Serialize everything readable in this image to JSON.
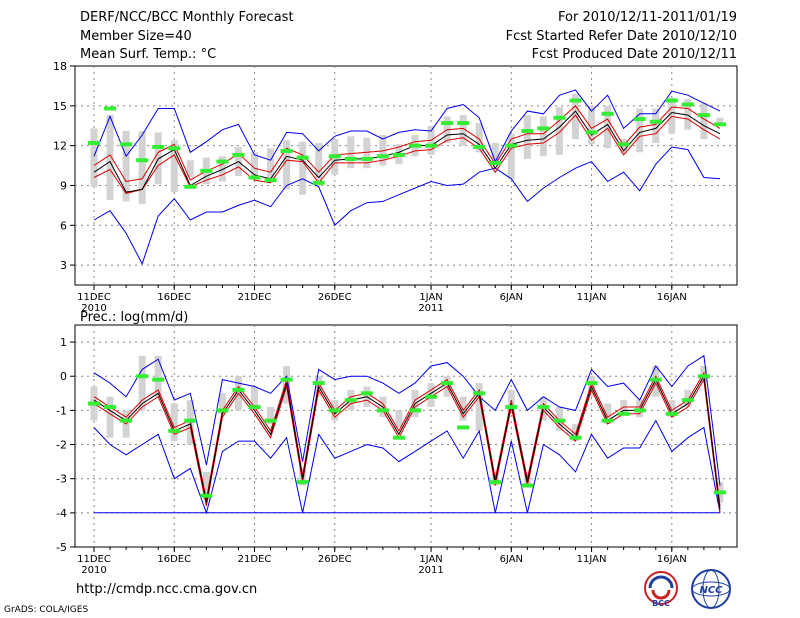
{
  "header": {
    "title": "DERF/NCC/BCC Monthly Forecast",
    "member_size": "Member Size=40",
    "variable1": "Mean Surf. Temp.: °C",
    "for_range": "For 2010/12/11-2011/01/19",
    "refer_date": "Fcst Started Refer Date 2010/12/10",
    "produced_date": "Fcst Produced Date 2010/12/11"
  },
  "footer": {
    "url": "http://cmdp.ncc.cma.gov.cn",
    "grads": "GrADS: COLA/IGES",
    "logo_bcc": "BCC",
    "logo_ncc": "NCC"
  },
  "colors": {
    "box": "#d3d3d3",
    "median": "#33ee33",
    "envelope": "#0000ee",
    "spread": "#dd0000",
    "mean": "#000000",
    "grid": "#888888"
  },
  "chart_data": [
    {
      "type": "line",
      "title": "Mean Surf. Temp.: °C",
      "x_days": 40,
      "xticks": [
        "11DEC\n2010",
        "16DEC",
        "21DEC",
        "26DEC",
        "1JAN\n2011",
        "6JAN",
        "11JAN",
        "16JAN"
      ],
      "xtick_days": [
        0,
        5,
        10,
        15,
        21,
        26,
        31,
        36
      ],
      "ylim": [
        1.5,
        18
      ],
      "yticks": [
        3,
        6,
        9,
        12,
        15,
        18
      ],
      "series": [
        {
          "name": "max",
          "values": [
            6.4,
            7.1,
            5.4,
            3.1,
            6.7,
            8.0,
            6.4,
            7.0,
            7.0,
            7.5,
            7.9,
            7.4,
            9.0,
            9.5,
            8.9,
            6.0,
            7.1,
            7.7,
            7.8,
            8.3,
            8.8,
            9.3,
            9.0,
            9.1,
            10.0,
            10.3,
            9.5,
            7.8,
            8.8,
            9.6,
            10.3,
            10.8,
            9.3,
            10.0,
            8.6,
            10.6,
            11.9,
            11.7,
            9.6,
            9.5
          ]
        },
        {
          "name": "box_low",
          "values": [
            8.9,
            7.9,
            7.8,
            7.6,
            9.1,
            8.5,
            9.6,
            9.1,
            9.3,
            9.7,
            9.7,
            9.2,
            8.7,
            8.3,
            9.0,
            9.8,
            10.3,
            10.3,
            10.5,
            10.6,
            11.2,
            11.3,
            12.2,
            12.0,
            11.5,
            10.6,
            9.5,
            11.0,
            11.2,
            11.3,
            12.5,
            12.1,
            11.8,
            11.4,
            11.5,
            12.2,
            12.9,
            13.2,
            12.5,
            13.5
          ]
        },
        {
          "name": "mean_low",
          "values": [
            9.6,
            10.2,
            8.4,
            8.7,
            10.5,
            11.3,
            8.9,
            9.4,
            9.8,
            10.4,
            9.4,
            9.2,
            10.9,
            10.8,
            9.2,
            10.7,
            10.7,
            10.7,
            10.9,
            11.2,
            11.6,
            11.7,
            12.4,
            12.6,
            11.8,
            10.0,
            11.8,
            12.1,
            12.2,
            13.0,
            14.3,
            12.4,
            13.3,
            11.3,
            12.7,
            12.9,
            14.2,
            14.0,
            13.2,
            12.5
          ]
        },
        {
          "name": "ensemble_mean",
          "values": [
            10.0,
            10.8,
            8.5,
            8.7,
            11.0,
            11.7,
            9.0,
            9.7,
            10.2,
            10.8,
            9.8,
            9.5,
            11.2,
            10.9,
            9.6,
            10.9,
            11.0,
            11.0,
            11.2,
            11.5,
            12.0,
            12.0,
            12.8,
            12.9,
            12.1,
            10.3,
            12.1,
            12.4,
            12.5,
            13.4,
            14.6,
            12.8,
            13.6,
            11.6,
            13.0,
            13.3,
            14.5,
            14.3,
            13.5,
            12.9
          ]
        },
        {
          "name": "mean_high",
          "values": [
            10.5,
            11.3,
            9.3,
            9.5,
            11.5,
            12.1,
            9.4,
            10.1,
            10.6,
            11.4,
            10.3,
            10.0,
            11.8,
            11.3,
            10.0,
            11.3,
            11.4,
            11.5,
            11.6,
            11.9,
            12.3,
            12.4,
            13.2,
            13.3,
            12.5,
            10.6,
            12.5,
            12.9,
            12.9,
            13.9,
            15.0,
            13.3,
            14.0,
            12.0,
            13.4,
            13.6,
            14.9,
            14.8,
            14.0,
            13.3
          ]
        },
        {
          "name": "box_high",
          "values": [
            13.3,
            14.3,
            13.1,
            13.1,
            13.0,
            12.4,
            10.9,
            11.1,
            11.2,
            11.9,
            11.5,
            11.8,
            12.4,
            12.3,
            12.2,
            12.5,
            12.7,
            12.6,
            12.8,
            12.1,
            12.8,
            13.5,
            14.2,
            14.3,
            13.7,
            12.2,
            12.9,
            14.3,
            14.2,
            14.9,
            15.9,
            15.0,
            15.0,
            12.5,
            14.8,
            14.8,
            15.6,
            15.5,
            15.2,
            14.1
          ]
        },
        {
          "name": "min",
          "values": [
            11.2,
            14.2,
            11.2,
            12.8,
            14.8,
            14.8,
            11.5,
            12.3,
            13.2,
            13.6,
            11.3,
            10.9,
            13.0,
            12.9,
            11.6,
            12.7,
            13.1,
            13.1,
            12.5,
            13.0,
            13.2,
            13.1,
            14.8,
            15.1,
            14.1,
            10.8,
            13.1,
            14.6,
            14.4,
            15.8,
            16.2,
            14.6,
            15.8,
            13.3,
            14.4,
            14.4,
            16.1,
            15.8,
            15.2,
            14.6
          ]
        },
        {
          "name": "median",
          "values": [
            12.2,
            14.8,
            12.1,
            10.9,
            11.9,
            11.8,
            8.9,
            10.1,
            10.8,
            11.3,
            9.6,
            9.4,
            11.6,
            11.1,
            9.2,
            11.2,
            11.0,
            11.0,
            11.2,
            11.3,
            12.0,
            12.0,
            13.7,
            13.7,
            11.9,
            10.7,
            12.0,
            13.1,
            13.3,
            14.1,
            15.4,
            13.0,
            14.4,
            12.1,
            14.0,
            13.8,
            15.4,
            15.1,
            14.3,
            13.6
          ]
        }
      ]
    },
    {
      "type": "line",
      "title": "Prec.: log(mm/d)",
      "x_days": 40,
      "xticks": [
        "11DEC\n2010",
        "16DEC",
        "21DEC",
        "26DEC",
        "1JAN\n2011",
        "6JAN",
        "11JAN",
        "16JAN"
      ],
      "xtick_days": [
        0,
        5,
        10,
        15,
        21,
        26,
        31,
        36
      ],
      "ylim": [
        -5,
        1.5
      ],
      "yticks": [
        -5,
        -4,
        -3,
        -2,
        -1,
        0,
        1
      ],
      "series": [
        {
          "name": "max",
          "values": [
            0.1,
            -0.2,
            -0.6,
            0.2,
            0.5,
            -0.7,
            -0.5,
            -2.6,
            -0.1,
            -0.2,
            -0.3,
            -0.5,
            0.0,
            -2.5,
            0.2,
            -0.1,
            0.0,
            0.0,
            -0.2,
            -0.5,
            -0.2,
            0.3,
            0.4,
            0.0,
            -0.6,
            -1.0,
            -0.1,
            -1.0,
            -0.6,
            -0.9,
            -1.0,
            0.2,
            -0.3,
            -0.2,
            -0.7,
            0.3,
            -0.3,
            0.3,
            0.6,
            -3.2
          ]
        },
        {
          "name": "box_low",
          "values": [
            -1.3,
            -1.8,
            -1.8,
            -1.0,
            -0.6,
            -1.9,
            -2.0,
            -3.6,
            -1.1,
            -1.0,
            -1.0,
            -1.4,
            -0.8,
            -3.2,
            -0.6,
            -1.3,
            -1.0,
            -0.9,
            -1.2,
            -1.5,
            -1.2,
            -0.9,
            -0.6,
            -1.3,
            -1.6,
            -3.2,
            -1.1,
            -3.2,
            -1.3,
            -1.6,
            -1.9,
            -0.6,
            -1.4,
            -1.1,
            -1.2,
            -0.6,
            -1.2,
            -0.9,
            -0.2,
            -3.7
          ]
        },
        {
          "name": "mean_low",
          "values": [
            -0.8,
            -1.1,
            -1.4,
            -0.9,
            -0.6,
            -1.7,
            -1.5,
            -3.8,
            -1.2,
            -0.5,
            -1.1,
            -1.8,
            -0.3,
            -3.1,
            -0.4,
            -1.2,
            -0.8,
            -0.7,
            -1.0,
            -1.8,
            -0.9,
            -0.6,
            -0.3,
            -1.2,
            -0.6,
            -3.2,
            -0.9,
            -3.2,
            -1.0,
            -1.5,
            -1.9,
            -0.4,
            -1.4,
            -1.1,
            -1.1,
            -0.2,
            -1.2,
            -0.9,
            -0.1,
            -4.0
          ]
        },
        {
          "name": "ensemble_mean",
          "values": [
            -0.7,
            -1.0,
            -1.3,
            -0.8,
            -0.5,
            -1.6,
            -1.4,
            -3.7,
            -1.1,
            -0.4,
            -1.0,
            -1.7,
            -0.2,
            -3.0,
            -0.3,
            -1.1,
            -0.7,
            -0.6,
            -0.9,
            -1.7,
            -0.8,
            -0.5,
            -0.2,
            -1.1,
            -0.5,
            -3.1,
            -0.8,
            -3.1,
            -0.9,
            -1.4,
            -1.8,
            -0.3,
            -1.3,
            -1.0,
            -1.0,
            -0.1,
            -1.1,
            -0.8,
            0.0,
            -3.9
          ]
        },
        {
          "name": "mean_high",
          "values": [
            -0.6,
            -0.9,
            -1.2,
            -0.7,
            -0.4,
            -1.5,
            -1.3,
            -3.6,
            -1.0,
            -0.3,
            -0.9,
            -1.6,
            -0.1,
            -2.9,
            -0.2,
            -1.0,
            -0.6,
            -0.5,
            -0.8,
            -1.6,
            -0.7,
            -0.4,
            -0.1,
            -1.0,
            -0.4,
            -3.0,
            -0.7,
            -3.0,
            -0.8,
            -1.3,
            -1.7,
            -0.2,
            -1.2,
            -0.9,
            -0.9,
            0.0,
            -1.0,
            -0.7,
            0.1,
            -3.8
          ]
        },
        {
          "name": "box_high",
          "values": [
            -0.3,
            -0.6,
            -1.0,
            0.6,
            0.6,
            -0.8,
            -0.7,
            -2.8,
            -0.5,
            0.0,
            -0.3,
            -0.9,
            0.3,
            -2.7,
            0.0,
            -0.7,
            -0.4,
            -0.3,
            -0.6,
            -1.0,
            -0.4,
            -0.2,
            0.0,
            -0.6,
            -0.2,
            -2.8,
            -0.4,
            -2.8,
            -0.6,
            -0.9,
            -1.4,
            0.0,
            -0.8,
            -0.7,
            -0.7,
            0.3,
            -0.7,
            -0.4,
            0.3,
            -3.1
          ]
        },
        {
          "name": "min",
          "values": [
            -1.5,
            -2.0,
            -2.3,
            -2.0,
            -1.7,
            -3.0,
            -2.7,
            -4.0,
            -2.2,
            -1.9,
            -1.9,
            -2.4,
            -1.8,
            -4.0,
            -1.7,
            -2.4,
            -2.2,
            -2.0,
            -2.1,
            -2.5,
            -2.2,
            -1.9,
            -1.6,
            -2.4,
            -1.6,
            -4.0,
            -1.9,
            -4.0,
            -2.0,
            -2.3,
            -2.8,
            -1.7,
            -2.4,
            -2.1,
            -2.1,
            -1.3,
            -2.2,
            -1.8,
            -1.5,
            -4.0
          ]
        },
        {
          "name": "median",
          "values": [
            -0.8,
            -0.9,
            -1.3,
            0.0,
            -0.1,
            -1.6,
            -1.3,
            -3.5,
            -1.0,
            -0.4,
            -0.9,
            -1.3,
            -0.1,
            -3.1,
            -0.2,
            -1.0,
            -0.7,
            -0.5,
            -1.0,
            -1.8,
            -1.0,
            -0.6,
            -0.2,
            -1.5,
            -0.5,
            -3.1,
            -0.9,
            -3.2,
            -0.9,
            -1.3,
            -1.8,
            -0.2,
            -1.3,
            -1.1,
            -1.0,
            -0.1,
            -1.1,
            -0.7,
            0.0,
            -3.4
          ]
        },
        {
          "name": "floor",
          "values": [
            -4,
            -4,
            -4,
            -4,
            -4,
            -4,
            -4,
            -4,
            -4,
            -4,
            -4,
            -4,
            -4,
            -4,
            -4,
            -4,
            -4,
            -4,
            -4,
            -4,
            -4,
            -4,
            -4,
            -4,
            -4,
            -4,
            -4,
            -4,
            -4,
            -4,
            -4,
            -4,
            -4,
            -4,
            -4,
            -4,
            -4,
            -4,
            -4,
            -4
          ]
        }
      ]
    }
  ]
}
